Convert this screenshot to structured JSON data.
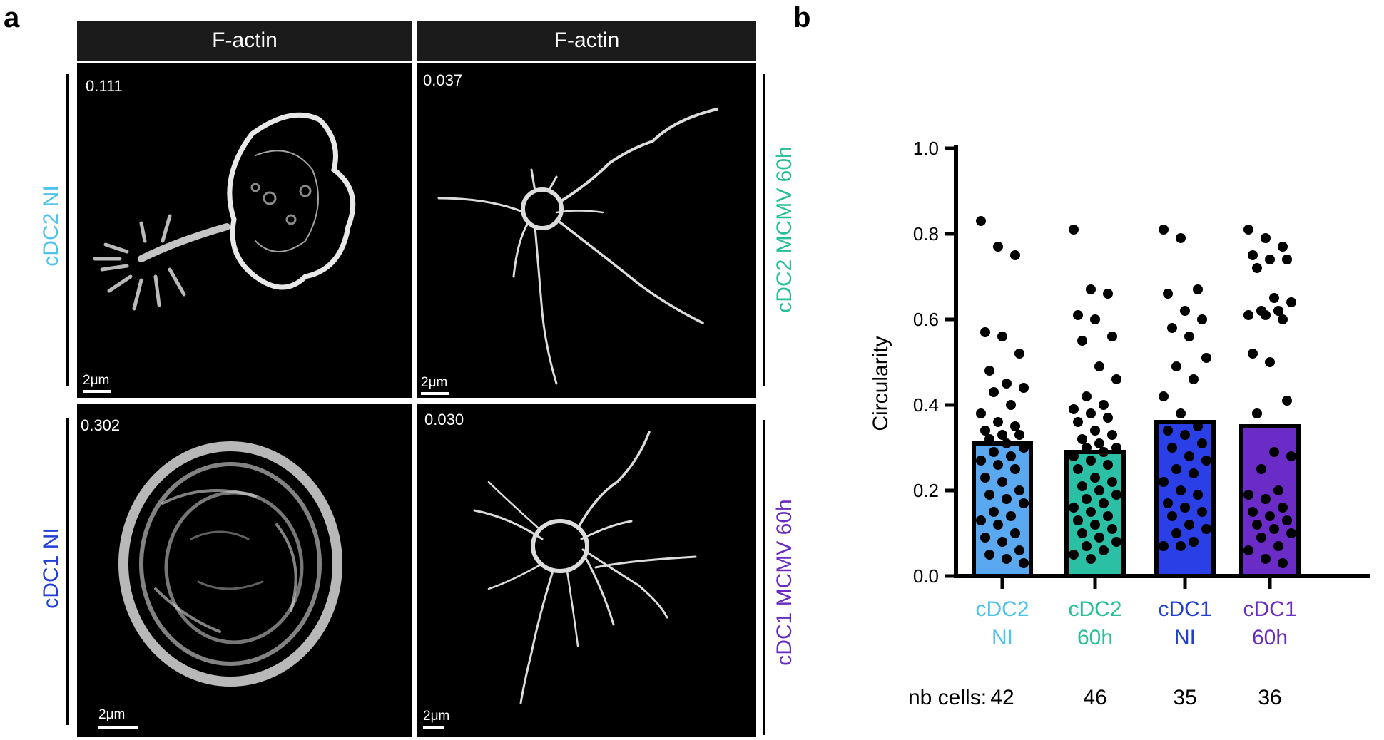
{
  "panel_a": {
    "letter": "a",
    "column_headers": [
      "F-actin",
      "F-actin"
    ],
    "row_labels": {
      "left_top": "cDC2 NI",
      "left_bottom": "cDC1 NI",
      "right_top": "cDC2 MCMV 60h",
      "right_bottom": "cDC1 MCMV 60h"
    },
    "images": [
      {
        "value": "0.111",
        "scale": "2μm"
      },
      {
        "value": "0.037",
        "scale": "2μm"
      },
      {
        "value": "0.302",
        "scale": "2μm"
      },
      {
        "value": "0.030",
        "scale": "2μm"
      }
    ],
    "colors": {
      "cdc2_ni": "#4fc3ee",
      "cdc2_mcmv": "#27bf9a",
      "cdc1_ni": "#1f3fd6",
      "cdc1_mcmv": "#6a2bbf"
    }
  },
  "panel_b": {
    "letter": "b",
    "nb_cells_label": "nb cells:",
    "nb_cells": [
      "42",
      "46",
      "35",
      "36"
    ]
  },
  "chart_data": {
    "type": "bar",
    "title": "",
    "xlabel": "",
    "ylabel": "Circularity",
    "ylim": [
      0,
      1.0
    ],
    "yticks": [
      "0.0",
      "0.2",
      "0.4",
      "0.6",
      "0.8",
      "1.0"
    ],
    "categories": [
      [
        "cDC2",
        "NI"
      ],
      [
        "cDC2",
        "60h"
      ],
      [
        "cDC1",
        "NI"
      ],
      [
        "cDC1",
        "60h"
      ]
    ],
    "values": [
      0.31,
      0.29,
      0.36,
      0.35
    ],
    "colors": [
      "#5aa9f0",
      "#2bbfa5",
      "#2a3fe6",
      "#6a2bc6"
    ],
    "label_colors": [
      "#4fc3ee",
      "#27bf9a",
      "#1f3fd6",
      "#6a2bbf"
    ],
    "points": [
      [
        0.83,
        0.77,
        0.75,
        0.57,
        0.56,
        0.52,
        0.48,
        0.45,
        0.44,
        0.43,
        0.4,
        0.38,
        0.36,
        0.35,
        0.34,
        0.33,
        0.33,
        0.32,
        0.31,
        0.3,
        0.29,
        0.28,
        0.27,
        0.26,
        0.25,
        0.23,
        0.22,
        0.2,
        0.19,
        0.18,
        0.17,
        0.15,
        0.14,
        0.13,
        0.12,
        0.1,
        0.09,
        0.08,
        0.06,
        0.05,
        0.04,
        0.03
      ],
      [
        0.81,
        0.67,
        0.66,
        0.61,
        0.6,
        0.56,
        0.55,
        0.49,
        0.46,
        0.42,
        0.4,
        0.39,
        0.38,
        0.37,
        0.36,
        0.34,
        0.33,
        0.32,
        0.31,
        0.3,
        0.3,
        0.29,
        0.28,
        0.27,
        0.26,
        0.25,
        0.23,
        0.22,
        0.21,
        0.2,
        0.19,
        0.18,
        0.17,
        0.16,
        0.15,
        0.14,
        0.13,
        0.12,
        0.11,
        0.1,
        0.09,
        0.08,
        0.07,
        0.06,
        0.05,
        0.04
      ],
      [
        0.81,
        0.79,
        0.67,
        0.66,
        0.62,
        0.6,
        0.58,
        0.56,
        0.51,
        0.49,
        0.46,
        0.42,
        0.38,
        0.35,
        0.34,
        0.33,
        0.31,
        0.3,
        0.28,
        0.27,
        0.25,
        0.24,
        0.22,
        0.2,
        0.19,
        0.17,
        0.16,
        0.15,
        0.14,
        0.12,
        0.11,
        0.1,
        0.08,
        0.07,
        0.07
      ],
      [
        0.81,
        0.79,
        0.77,
        0.75,
        0.74,
        0.74,
        0.72,
        0.65,
        0.64,
        0.62,
        0.62,
        0.61,
        0.61,
        0.6,
        0.52,
        0.5,
        0.41,
        0.38,
        0.29,
        0.28,
        0.25,
        0.2,
        0.19,
        0.18,
        0.16,
        0.15,
        0.14,
        0.13,
        0.12,
        0.11,
        0.1,
        0.09,
        0.07,
        0.06,
        0.04,
        0.03
      ]
    ]
  }
}
